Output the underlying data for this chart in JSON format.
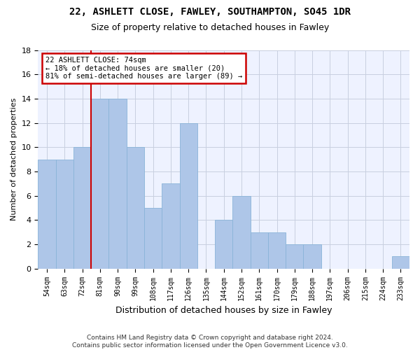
{
  "title1": "22, ASHLETT CLOSE, FAWLEY, SOUTHAMPTON, SO45 1DR",
  "title2": "Size of property relative to detached houses in Fawley",
  "xlabel": "Distribution of detached houses by size in Fawley",
  "ylabel": "Number of detached properties",
  "categories": [
    "54sqm",
    "63sqm",
    "72sqm",
    "81sqm",
    "90sqm",
    "99sqm",
    "108sqm",
    "117sqm",
    "126sqm",
    "135sqm",
    "144sqm",
    "152sqm",
    "161sqm",
    "170sqm",
    "179sqm",
    "188sqm",
    "197sqm",
    "206sqm",
    "215sqm",
    "224sqm",
    "233sqm"
  ],
  "values": [
    9,
    9,
    10,
    14,
    14,
    10,
    5,
    7,
    12,
    0,
    4,
    6,
    3,
    3,
    2,
    2,
    0,
    0,
    0,
    0,
    1
  ],
  "bar_color": "#aec6e8",
  "bar_edge_color": "#8ab4d8",
  "property_line_index": 2,
  "annotation_text": "22 ASHLETT CLOSE: 74sqm\n← 18% of detached houses are smaller (20)\n81% of semi-detached houses are larger (89) →",
  "annotation_box_color": "#ffffff",
  "annotation_box_edge_color": "#cc0000",
  "ylim": [
    0,
    18
  ],
  "yticks": [
    0,
    2,
    4,
    6,
    8,
    10,
    12,
    14,
    16,
    18
  ],
  "background_color": "#eef2ff",
  "grid_color": "#c8cfe0",
  "footer": "Contains HM Land Registry data © Crown copyright and database right 2024.\nContains public sector information licensed under the Open Government Licence v3.0.",
  "red_line_color": "#cc0000"
}
